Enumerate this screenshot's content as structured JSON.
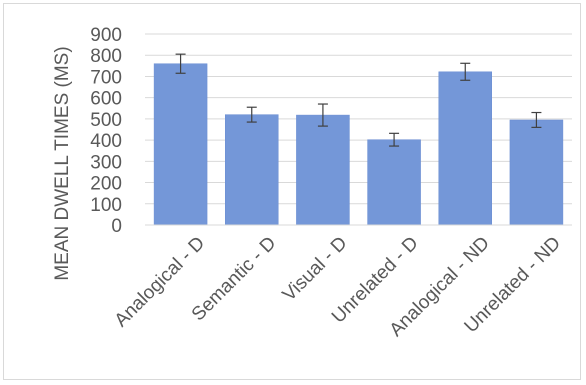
{
  "chart_data": {
    "type": "bar",
    "categories": [
      "Analogical - D",
      "Semantic - D",
      "Visual - D",
      "Unrelated - D",
      "Analogical - ND",
      "Unrelated - ND"
    ],
    "values": [
      760,
      520,
      518,
      402,
      722,
      495
    ],
    "error": [
      45,
      35,
      52,
      30,
      40,
      35
    ],
    "title": "",
    "xlabel": "",
    "ylabel": "MEAN DWELL TIMES (MS)",
    "ylim": [
      0,
      900
    ],
    "yticks": [
      0,
      100,
      200,
      300,
      400,
      500,
      600,
      700,
      800,
      900
    ],
    "grid": true,
    "legend": "none",
    "colors": {
      "bar": "#7497d8",
      "bar_edge": "#6a8dd2",
      "error_bar": "#404040",
      "grid": "#d9d9d9",
      "text": "#595959"
    }
  }
}
